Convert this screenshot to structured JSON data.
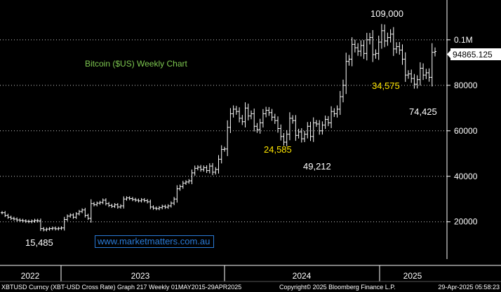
{
  "chart_data": {
    "type": "ohlc",
    "title": "Bitcoin ($US) Weekly Chart",
    "last_price_label": "94865.125",
    "y_ticks": [
      {
        "value": 20000,
        "label": "20000"
      },
      {
        "value": 40000,
        "label": "40000"
      },
      {
        "value": 60000,
        "label": "60000"
      },
      {
        "value": 80000,
        "label": "80000"
      },
      {
        "value": 100000,
        "label": "0.1M"
      }
    ],
    "ylim": [
      3600,
      117500
    ],
    "x_ticks": [
      "2022",
      "2023",
      "2024",
      "2025"
    ],
    "annotations": [
      {
        "text": "109,000",
        "color": "white",
        "value": 109000
      },
      {
        "text": "15,485",
        "color": "white",
        "value": 15485
      },
      {
        "text": "24,585",
        "color": "yellow",
        "value": 24585
      },
      {
        "text": "49,212",
        "color": "white",
        "value": 49212
      },
      {
        "text": "34,575",
        "color": "yellow",
        "value": 34575
      },
      {
        "text": "74,425",
        "color": "white",
        "value": 74425
      }
    ],
    "weekly_close": [
      24000,
      22800,
      22000,
      21500,
      21200,
      20800,
      20600,
      20400,
      20200,
      20100,
      20300,
      20600,
      20400,
      17000,
      16500,
      16800,
      17000,
      17200,
      16900,
      17100,
      17300,
      21000,
      22500,
      23000,
      22000,
      23500,
      24500,
      25200,
      22800,
      21500,
      28000,
      27500,
      28200,
      28500,
      29500,
      28000,
      27200,
      26800,
      27500,
      26500,
      27000,
      30000,
      30500,
      30200,
      29800,
      29500,
      29200,
      29700,
      29300,
      28800,
      26500,
      26000,
      25800,
      26200,
      26800,
      26400,
      27000,
      28200,
      30000,
      34500,
      35500,
      37000,
      37500,
      38000,
      41500,
      43500,
      44000,
      43000,
      43800,
      42500,
      44500,
      41800,
      43000,
      47500,
      51800,
      52000,
      61500,
      67500,
      69500,
      68500,
      65500,
      64000,
      70000,
      66500,
      67500,
      62000,
      60500,
      63500,
      67500,
      69000,
      68000,
      66000,
      64500,
      61000,
      57500,
      55000,
      58500,
      65500,
      64500,
      58000,
      59500,
      56500,
      58500,
      62000,
      57500,
      63500,
      63000,
      60000,
      62500,
      65000,
      63500,
      68500,
      67500,
      69500,
      75000,
      80000,
      90500,
      91500,
      98000,
      96500,
      95000,
      97500,
      94000,
      100000,
      101000,
      93500,
      94000,
      99000,
      104000,
      99500,
      101000,
      102500,
      96000,
      97000,
      95500,
      91500,
      84500,
      85000,
      83000,
      80500,
      82500,
      87500,
      84500,
      85500,
      83500,
      94500,
      94865
    ]
  },
  "footer": {
    "left": "XBTUSD Curncy (XBT-USD Cross Rate) Graph 217  Weekly 01MAY2015-29APR2025",
    "center": "Copyright© 2025 Bloomberg Finance L.P.",
    "right": "29-Apr-2025 05:58:23"
  },
  "watermark": "www.marketmatters.com.au",
  "colors": {
    "background": "#000000",
    "grid": "#c8c8c8",
    "price": "#ffffff",
    "title": "#7ec850",
    "yellow_label": "#ffe600",
    "watermark": "#2a7bd8"
  }
}
